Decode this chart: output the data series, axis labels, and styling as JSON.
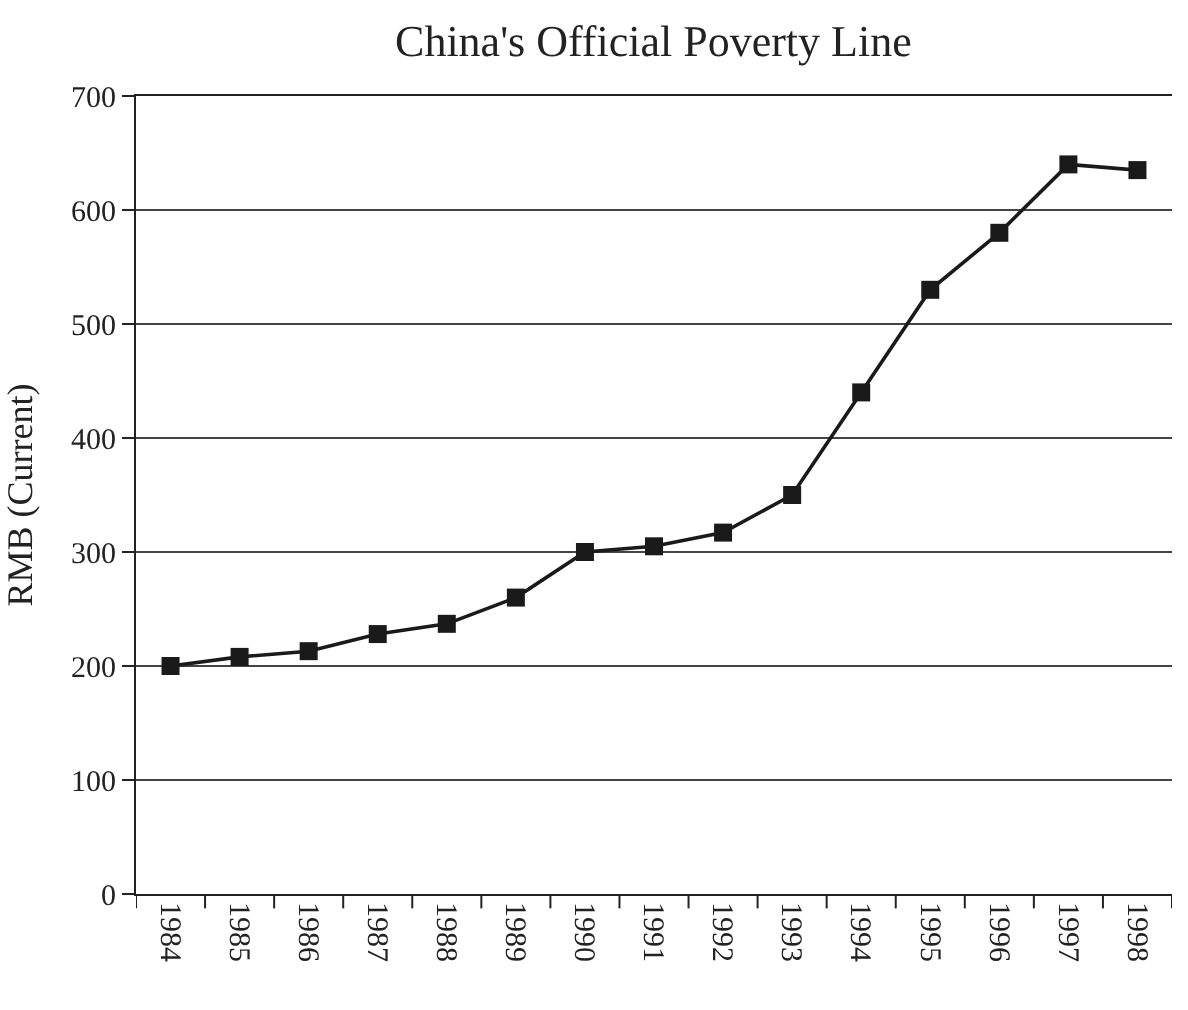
{
  "chart_data": {
    "type": "line",
    "title": "China's Official Poverty Line",
    "ylabel": "RMB (Current)",
    "categories": [
      "1984",
      "1985",
      "1986",
      "1987",
      "1988",
      "1989",
      "1990",
      "1991",
      "1992",
      "1993",
      "1994",
      "1995",
      "1996",
      "1997",
      "1998"
    ],
    "series": [
      {
        "color": "#1a1a1a",
        "values": [
          200,
          208,
          213,
          228,
          237,
          260,
          300,
          305,
          317,
          350,
          440,
          530,
          580,
          640,
          635
        ]
      }
    ],
    "ylim": [
      0,
      700
    ],
    "yticks": [
      0,
      100,
      200,
      300,
      400,
      500,
      600,
      700
    ],
    "grid": "y",
    "marker": "square",
    "line_style": "solid"
  }
}
